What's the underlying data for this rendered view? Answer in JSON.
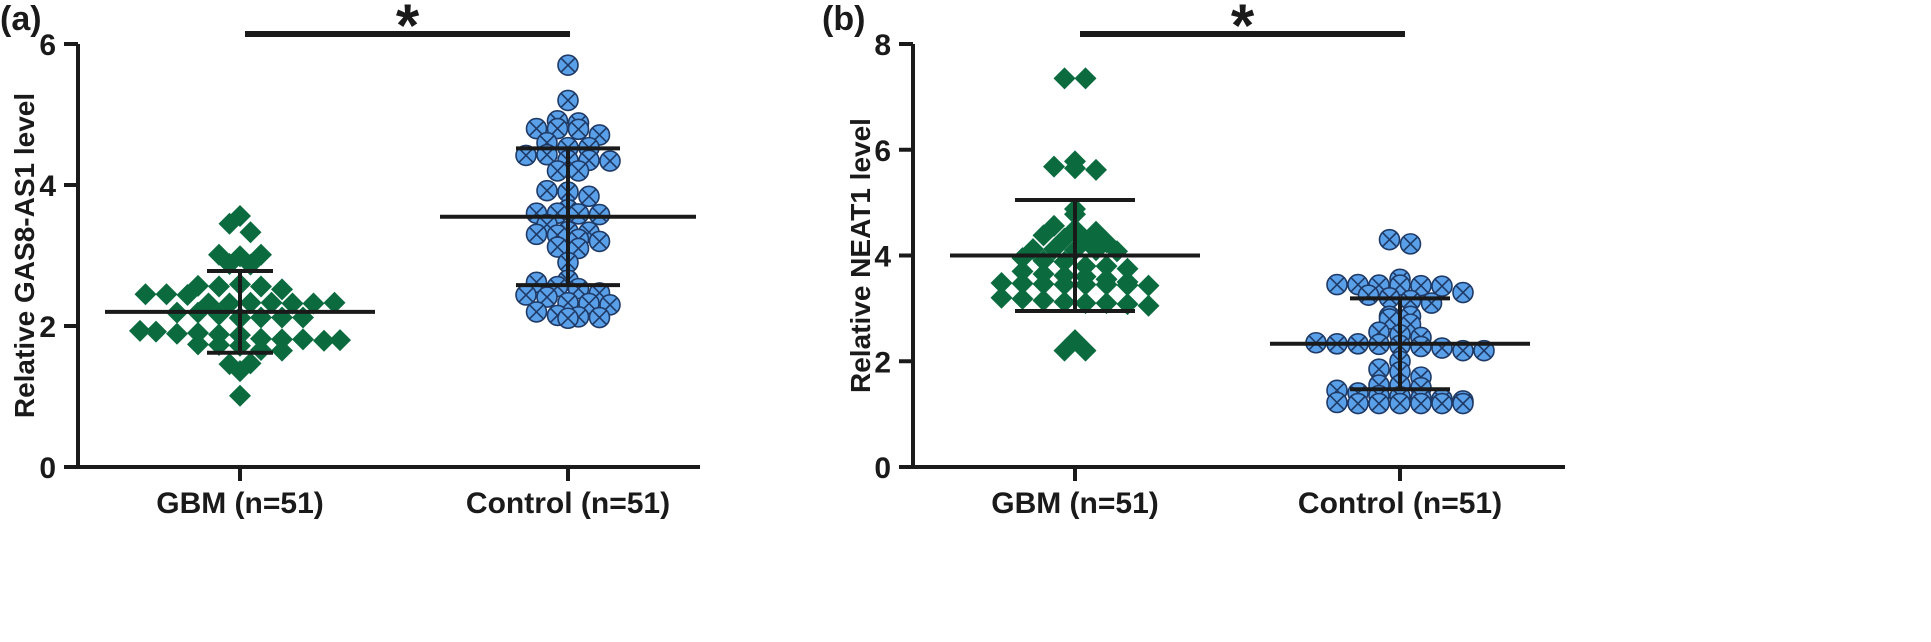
{
  "chart_data": [
    {
      "type": "scatter",
      "panel_label": "(a)",
      "ylabel": "Relative GAS8-AS1 level",
      "ylim": [
        0,
        6
      ],
      "yticks": [
        0,
        2,
        4,
        6
      ],
      "categories": [
        "GBM (n=51)",
        "Control (n=51)"
      ],
      "significance": "*",
      "series": [
        {
          "marker": "diamond",
          "color": "#0b6b3f",
          "mean": 2.2,
          "sd": 0.58,
          "values": [
            3.45,
            3.56,
            3.33,
            3.01,
            2.99,
            3.01,
            2.88,
            2.87,
            2.57,
            2.56,
            2.59,
            2.56,
            2.52,
            2.45,
            2.45,
            2.44,
            2.32,
            2.32,
            2.33,
            2.33,
            2.32,
            2.32,
            2.33,
            2.19,
            2.19,
            2.16,
            2.11,
            2.12,
            2.12,
            2.12,
            2.12,
            1.93,
            1.92,
            1.89,
            1.9,
            1.88,
            1.87,
            1.82,
            1.81,
            1.81,
            1.79,
            1.8,
            1.74,
            1.73,
            1.72,
            1.66,
            1.65,
            1.46,
            1.47,
            1.36,
            1.01
          ]
        },
        {
          "marker": "circle-x",
          "color": "#5aa0e8",
          "mean": 3.55,
          "sd": 0.97,
          "values": [
            5.7,
            5.2,
            4.91,
            4.88,
            4.8,
            4.8,
            4.79,
            4.71,
            4.6,
            4.53,
            4.53,
            4.42,
            4.43,
            4.35,
            4.35,
            4.34,
            4.2,
            4.2,
            3.92,
            3.9,
            3.84,
            3.65,
            3.6,
            3.6,
            3.59,
            3.58,
            3.44,
            3.34,
            3.33,
            3.3,
            3.29,
            3.23,
            3.2,
            3.12,
            3.1,
            2.9,
            2.65,
            2.62,
            2.56,
            2.53,
            2.47,
            2.44,
            2.41,
            2.33,
            2.32,
            2.3,
            2.2,
            2.15,
            2.13,
            2.12,
            2.11
          ]
        }
      ]
    },
    {
      "type": "scatter",
      "panel_label": "(b)",
      "ylabel": "Relative NEAT1 level",
      "ylim": [
        0,
        8
      ],
      "yticks": [
        0,
        2,
        4,
        6,
        8
      ],
      "categories": [
        "GBM (n=51)",
        "Control (n=51)"
      ],
      "significance": "*",
      "series": [
        {
          "marker": "diamond",
          "color": "#0b6b3f",
          "mean": 4.0,
          "sd": 1.05,
          "values": [
            7.35,
            7.35,
            5.78,
            5.68,
            5.65,
            5.62,
            4.88,
            4.78,
            4.56,
            4.5,
            4.45,
            4.38,
            4.32,
            4.3,
            4.25,
            4.12,
            4.12,
            4.1,
            4.1,
            4.08,
            3.95,
            3.9,
            3.88,
            3.8,
            3.8,
            3.75,
            3.7,
            3.65,
            3.62,
            3.6,
            3.55,
            3.5,
            3.48,
            3.47,
            3.46,
            3.45,
            3.45,
            3.45,
            3.44,
            3.43,
            3.2,
            3.18,
            3.15,
            3.12,
            3.1,
            3.1,
            3.08,
            3.05,
            2.4,
            2.2,
            2.2
          ]
        },
        {
          "marker": "circle-x",
          "color": "#5aa0e8",
          "mean": 2.33,
          "sd": 0.86,
          "values": [
            4.3,
            4.22,
            3.55,
            3.45,
            3.45,
            3.44,
            3.44,
            3.43,
            3.42,
            3.3,
            3.25,
            3.2,
            3.15,
            3.1,
            2.85,
            2.85,
            2.8,
            2.7,
            2.55,
            2.5,
            2.45,
            2.35,
            2.33,
            2.33,
            2.32,
            2.3,
            2.28,
            2.25,
            2.2,
            2.2,
            2.0,
            1.85,
            1.8,
            1.7,
            1.55,
            1.55,
            1.5,
            1.45,
            1.4,
            1.35,
            1.33,
            1.3,
            1.28,
            1.25,
            1.22,
            1.2,
            1.2,
            1.2,
            1.2,
            1.2,
            1.2
          ]
        }
      ]
    }
  ]
}
